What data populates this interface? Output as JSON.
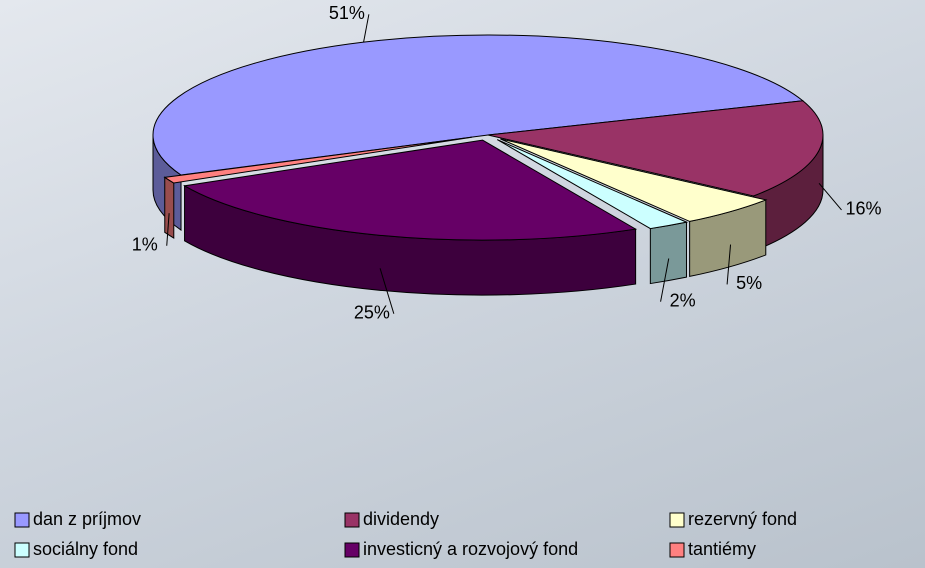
{
  "chart_data": {
    "type": "pie",
    "categories": [
      "dan z príjmov",
      "dividendy",
      "rezervný fond",
      "sociálny fond",
      "investicný a rozvojový fond",
      "tantiémy"
    ],
    "values": [
      51,
      16,
      5,
      2,
      25,
      1
    ],
    "value_labels": [
      "51%",
      "16%",
      "5%",
      "2%",
      "25%",
      "1%"
    ],
    "colors": [
      "#9999ff",
      "#993366",
      "#ffffcc",
      "#ccffff",
      "#660066",
      "#ff8080"
    ]
  }
}
